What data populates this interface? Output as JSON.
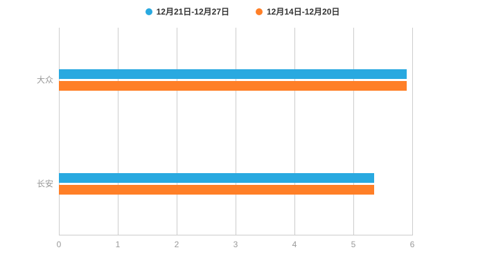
{
  "chart_data": {
    "type": "bar",
    "orientation": "horizontal",
    "title": "",
    "categories": [
      "大众",
      "长安"
    ],
    "series": [
      {
        "name": "12月21日-12月27日",
        "color": "#29a9e0",
        "values": [
          5.9,
          5.35
        ]
      },
      {
        "name": "12月14日-12月20日",
        "color": "#ff7f27",
        "values": [
          5.9,
          5.35
        ]
      }
    ],
    "xlabel": "",
    "ylabel": "",
    "xlim": [
      0,
      6
    ],
    "xticks": [
      0,
      1,
      2,
      3,
      4,
      5,
      6
    ],
    "grid": true,
    "legend_position": "top"
  },
  "layout_colors": {
    "background": "#ffffff",
    "gridline": "#cccccc",
    "axis_text": "#999999",
    "legend_text": "#333333"
  }
}
